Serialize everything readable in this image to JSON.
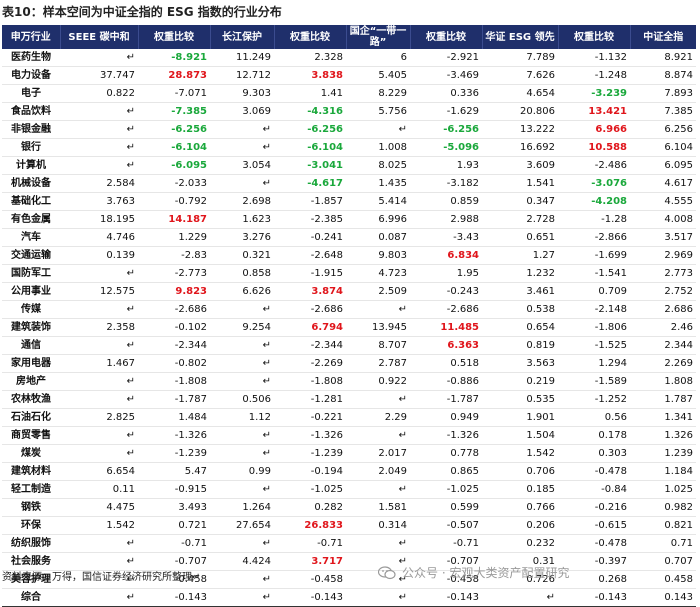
{
  "title": "表10：样本空间为中证全指的 ESG 指数的行业分布",
  "headers": [
    "申万行业",
    "SEEE 碳中和",
    "权重比较",
    "长江保护",
    "权重比较",
    "国企“一带一路”",
    "权重比较",
    "华证 ESG 领先",
    "权重比较",
    "中证全指"
  ],
  "rows": [
    {
      "name": "医药生物",
      "v": [
        "↵",
        "-8.921",
        "11.249",
        "2.328",
        "6",
        "-2.921",
        "7.789",
        "-1.132",
        "8.921"
      ],
      "c": [
        "",
        "neg",
        "",
        "",
        "",
        "",
        "",
        "",
        ""
      ]
    },
    {
      "name": "电力设备",
      "v": [
        "37.747",
        "28.873",
        "12.712",
        "3.838",
        "5.405",
        "-3.469",
        "7.626",
        "-1.248",
        "8.874"
      ],
      "c": [
        "",
        "pos",
        "",
        "pos",
        "",
        "",
        "",
        "",
        ""
      ]
    },
    {
      "name": "电子",
      "v": [
        "0.822",
        "-7.071",
        "9.303",
        "1.41",
        "8.229",
        "0.336",
        "4.654",
        "-3.239",
        "7.893"
      ],
      "c": [
        "",
        "",
        "",
        "",
        "",
        "",
        "",
        "neg",
        ""
      ]
    },
    {
      "name": "食品饮料",
      "v": [
        "↵",
        "-7.385",
        "3.069",
        "-4.316",
        "5.756",
        "-1.629",
        "20.806",
        "13.421",
        "7.385"
      ],
      "c": [
        "",
        "neg",
        "",
        "neg",
        "",
        "",
        "",
        "pos",
        ""
      ]
    },
    {
      "name": "非银金融",
      "v": [
        "↵",
        "-6.256",
        "↵",
        "-6.256",
        "↵",
        "-6.256",
        "13.222",
        "6.966",
        "6.256"
      ],
      "c": [
        "",
        "neg",
        "",
        "neg",
        "",
        "neg",
        "",
        "pos",
        ""
      ]
    },
    {
      "name": "银行",
      "v": [
        "↵",
        "-6.104",
        "↵",
        "-6.104",
        "1.008",
        "-5.096",
        "16.692",
        "10.588",
        "6.104"
      ],
      "c": [
        "",
        "neg",
        "",
        "neg",
        "",
        "neg",
        "",
        "pos",
        ""
      ]
    },
    {
      "name": "计算机",
      "v": [
        "↵",
        "-6.095",
        "3.054",
        "-3.041",
        "8.025",
        "1.93",
        "3.609",
        "-2.486",
        "6.095"
      ],
      "c": [
        "",
        "neg",
        "",
        "neg",
        "",
        "",
        "",
        "",
        ""
      ]
    },
    {
      "name": "机械设备",
      "v": [
        "2.584",
        "-2.033",
        "↵",
        "-4.617",
        "1.435",
        "-3.182",
        "1.541",
        "-3.076",
        "4.617"
      ],
      "c": [
        "",
        "",
        "",
        "neg",
        "",
        "",
        "",
        "neg",
        ""
      ]
    },
    {
      "name": "基础化工",
      "v": [
        "3.763",
        "-0.792",
        "2.698",
        "-1.857",
        "5.414",
        "0.859",
        "0.347",
        "-4.208",
        "4.555"
      ],
      "c": [
        "",
        "",
        "",
        "",
        "",
        "",
        "",
        "neg",
        ""
      ]
    },
    {
      "name": "有色金属",
      "v": [
        "18.195",
        "14.187",
        "1.623",
        "-2.385",
        "6.996",
        "2.988",
        "2.728",
        "-1.28",
        "4.008"
      ],
      "c": [
        "",
        "pos",
        "",
        "",
        "",
        "",
        "",
        "",
        ""
      ]
    },
    {
      "name": "汽车",
      "v": [
        "4.746",
        "1.229",
        "3.276",
        "-0.241",
        "0.087",
        "-3.43",
        "0.651",
        "-2.866",
        "3.517"
      ],
      "c": [
        "",
        "",
        "",
        "",
        "",
        "",
        "",
        "",
        ""
      ]
    },
    {
      "name": "交通运输",
      "v": [
        "0.139",
        "-2.83",
        "0.321",
        "-2.648",
        "9.803",
        "6.834",
        "1.27",
        "-1.699",
        "2.969"
      ],
      "c": [
        "",
        "",
        "",
        "",
        "",
        "pos",
        "",
        "",
        ""
      ]
    },
    {
      "name": "国防军工",
      "v": [
        "↵",
        "-2.773",
        "0.858",
        "-1.915",
        "4.723",
        "1.95",
        "1.232",
        "-1.541",
        "2.773"
      ],
      "c": [
        "",
        "",
        "",
        "",
        "",
        "",
        "",
        "",
        ""
      ]
    },
    {
      "name": "公用事业",
      "v": [
        "12.575",
        "9.823",
        "6.626",
        "3.874",
        "2.509",
        "-0.243",
        "3.461",
        "0.709",
        "2.752"
      ],
      "c": [
        "",
        "pos",
        "",
        "pos",
        "",
        "",
        "",
        "",
        ""
      ]
    },
    {
      "name": "传媒",
      "v": [
        "↵",
        "-2.686",
        "↵",
        "-2.686",
        "↵",
        "-2.686",
        "0.538",
        "-2.148",
        "2.686"
      ],
      "c": [
        "",
        "",
        "",
        "",
        "",
        "",
        "",
        "",
        ""
      ]
    },
    {
      "name": "建筑装饰",
      "v": [
        "2.358",
        "-0.102",
        "9.254",
        "6.794",
        "13.945",
        "11.485",
        "0.654",
        "-1.806",
        "2.46"
      ],
      "c": [
        "",
        "",
        "",
        "pos",
        "",
        "pos",
        "",
        "",
        ""
      ]
    },
    {
      "name": "通信",
      "v": [
        "↵",
        "-2.344",
        "↵",
        "-2.344",
        "8.707",
        "6.363",
        "0.819",
        "-1.525",
        "2.344"
      ],
      "c": [
        "",
        "",
        "",
        "",
        "",
        "pos",
        "",
        "",
        ""
      ]
    },
    {
      "name": "家用电器",
      "v": [
        "1.467",
        "-0.802",
        "↵",
        "-2.269",
        "2.787",
        "0.518",
        "3.563",
        "1.294",
        "2.269"
      ],
      "c": [
        "",
        "",
        "",
        "",
        "",
        "",
        "",
        "",
        ""
      ]
    },
    {
      "name": "房地产",
      "v": [
        "↵",
        "-1.808",
        "↵",
        "-1.808",
        "0.922",
        "-0.886",
        "0.219",
        "-1.589",
        "1.808"
      ],
      "c": [
        "",
        "",
        "",
        "",
        "",
        "",
        "",
        "",
        ""
      ]
    },
    {
      "name": "农林牧渔",
      "v": [
        "↵",
        "-1.787",
        "0.506",
        "-1.281",
        "↵",
        "-1.787",
        "0.535",
        "-1.252",
        "1.787"
      ],
      "c": [
        "",
        "",
        "",
        "",
        "",
        "",
        "",
        "",
        ""
      ]
    },
    {
      "name": "石油石化",
      "v": [
        "2.825",
        "1.484",
        "1.12",
        "-0.221",
        "2.29",
        "0.949",
        "1.901",
        "0.56",
        "1.341"
      ],
      "c": [
        "",
        "",
        "",
        "",
        "",
        "",
        "",
        "",
        ""
      ]
    },
    {
      "name": "商贸零售",
      "v": [
        "↵",
        "-1.326",
        "↵",
        "-1.326",
        "↵",
        "-1.326",
        "1.504",
        "0.178",
        "1.326"
      ],
      "c": [
        "",
        "",
        "",
        "",
        "",
        "",
        "",
        "",
        ""
      ]
    },
    {
      "name": "煤炭",
      "v": [
        "↵",
        "-1.239",
        "↵",
        "-1.239",
        "2.017",
        "0.778",
        "1.542",
        "0.303",
        "1.239"
      ],
      "c": [
        "",
        "",
        "",
        "",
        "",
        "",
        "",
        "",
        ""
      ]
    },
    {
      "name": "建筑材料",
      "v": [
        "6.654",
        "5.47",
        "0.99",
        "-0.194",
        "2.049",
        "0.865",
        "0.706",
        "-0.478",
        "1.184"
      ],
      "c": [
        "",
        "",
        "",
        "",
        "",
        "",
        "",
        "",
        ""
      ]
    },
    {
      "name": "轻工制造",
      "v": [
        "0.11",
        "-0.915",
        "↵",
        "-1.025",
        "↵",
        "-1.025",
        "0.185",
        "-0.84",
        "1.025"
      ],
      "c": [
        "",
        "",
        "",
        "",
        "",
        "",
        "",
        "",
        ""
      ]
    },
    {
      "name": "钢铁",
      "v": [
        "4.475",
        "3.493",
        "1.264",
        "0.282",
        "1.581",
        "0.599",
        "0.766",
        "-0.216",
        "0.982"
      ],
      "c": [
        "",
        "",
        "",
        "",
        "",
        "",
        "",
        "",
        ""
      ]
    },
    {
      "name": "环保",
      "v": [
        "1.542",
        "0.721",
        "27.654",
        "26.833",
        "0.314",
        "-0.507",
        "0.206",
        "-0.615",
        "0.821"
      ],
      "c": [
        "",
        "",
        "",
        "pos",
        "",
        "",
        "",
        "",
        ""
      ]
    },
    {
      "name": "纺织服饰",
      "v": [
        "↵",
        "-0.71",
        "↵",
        "-0.71",
        "↵",
        "-0.71",
        "0.232",
        "-0.478",
        "0.71"
      ],
      "c": [
        "",
        "",
        "",
        "",
        "",
        "",
        "",
        "",
        ""
      ]
    },
    {
      "name": "社会服务",
      "v": [
        "↵",
        "-0.707",
        "4.424",
        "3.717",
        "↵",
        "-0.707",
        "0.31",
        "-0.397",
        "0.707"
      ],
      "c": [
        "",
        "",
        "",
        "pos",
        "",
        "",
        "",
        "",
        ""
      ]
    },
    {
      "name": "美容护理",
      "v": [
        "↵",
        "-0.458",
        "↵",
        "-0.458",
        "↵",
        "-0.458",
        "0.726",
        "0.268",
        "0.458"
      ],
      "c": [
        "",
        "",
        "",
        "",
        "",
        "",
        "",
        "",
        ""
      ]
    },
    {
      "name": "综合",
      "v": [
        "↵",
        "-0.143",
        "↵",
        "-0.143",
        "↵",
        "-0.143",
        "↵",
        "-0.143",
        "0.143"
      ],
      "c": [
        "",
        "",
        "",
        "",
        "",
        "",
        "",
        "",
        ""
      ]
    }
  ],
  "source": "资料来源：万得，国信证券经济研究所整理↵",
  "watermark": "公众号 · 宏观大类资产配置研究"
}
